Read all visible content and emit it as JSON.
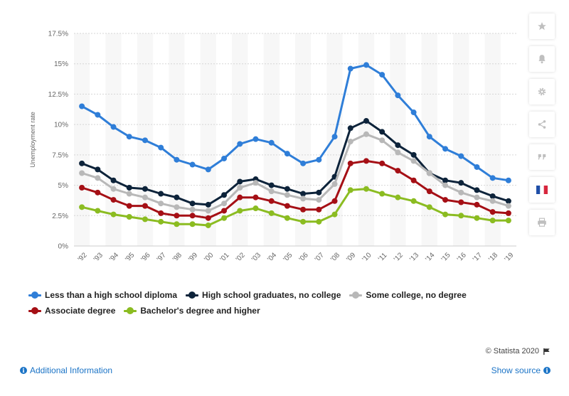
{
  "chart_data": {
    "type": "line",
    "title": "",
    "xlabel": "",
    "ylabel": "Unemployment rate",
    "ylim": [
      0,
      17.5
    ],
    "yticks": [
      0,
      2.5,
      5,
      7.5,
      10,
      12.5,
      15,
      17.5
    ],
    "ytick_labels": [
      "0%",
      "2.5%",
      "5%",
      "7.5%",
      "10%",
      "12.5%",
      "15%",
      "17.5%"
    ],
    "categories": [
      "'92",
      "'93",
      "'94",
      "'95",
      "'96",
      "'97",
      "'98",
      "'99",
      "'00",
      "'01",
      "'02",
      "'03",
      "'04",
      "'05",
      "'06",
      "'07",
      "'08",
      "'09",
      "'10",
      "'11",
      "'12",
      "'13",
      "'14",
      "'15",
      "'16",
      "'17",
      "'18",
      "'19"
    ],
    "grid": true,
    "legend_position": "bottom",
    "series": [
      {
        "name": "Less than a high school diploma",
        "color": "#2f7ed8",
        "values": [
          11.5,
          10.8,
          9.8,
          9.0,
          8.7,
          8.1,
          7.1,
          6.7,
          6.3,
          7.2,
          8.4,
          8.8,
          8.5,
          7.6,
          6.8,
          7.1,
          9.0,
          14.6,
          14.9,
          14.1,
          12.4,
          11.0,
          9.0,
          8.0,
          7.4,
          6.5,
          5.6,
          5.4
        ]
      },
      {
        "name": "High school graduates, no college",
        "color": "#0d233a",
        "values": [
          6.8,
          6.3,
          5.4,
          4.8,
          4.7,
          4.3,
          4.0,
          3.5,
          3.4,
          4.2,
          5.3,
          5.5,
          5.0,
          4.7,
          4.3,
          4.4,
          5.7,
          9.7,
          10.3,
          9.4,
          8.3,
          7.5,
          6.0,
          5.4,
          5.2,
          4.6,
          4.1,
          3.7
        ]
      },
      {
        "name": "Some college, no degree",
        "color": "#b8b8b8",
        "values": [
          6.0,
          5.6,
          4.7,
          4.3,
          4.0,
          3.5,
          3.2,
          3.0,
          2.9,
          3.5,
          4.8,
          5.2,
          4.5,
          4.2,
          3.9,
          3.8,
          5.1,
          8.6,
          9.2,
          8.7,
          7.7,
          7.0,
          6.0,
          5.0,
          4.4,
          4.0,
          3.7,
          3.3
        ]
      },
      {
        "name": "Associate degree",
        "color": "#a50f15",
        "values": [
          4.8,
          4.4,
          3.8,
          3.3,
          3.3,
          2.7,
          2.5,
          2.5,
          2.3,
          2.9,
          4.0,
          4.0,
          3.7,
          3.3,
          3.0,
          3.0,
          3.7,
          6.8,
          7.0,
          6.8,
          6.2,
          5.4,
          4.5,
          3.8,
          3.6,
          3.4,
          2.8,
          2.7
        ]
      },
      {
        "name": "Bachelor's degree and higher",
        "color": "#8bbc21",
        "values": [
          3.2,
          2.9,
          2.6,
          2.4,
          2.2,
          2.0,
          1.8,
          1.8,
          1.7,
          2.3,
          2.9,
          3.1,
          2.7,
          2.3,
          2.0,
          2.0,
          2.6,
          4.6,
          4.7,
          4.3,
          4.0,
          3.7,
          3.2,
          2.6,
          2.5,
          2.3,
          2.1,
          2.1
        ]
      }
    ]
  },
  "footer": {
    "credit": "© Statista 2020",
    "additional_info": "Additional Information",
    "show_source": "Show source"
  },
  "sidebar": {
    "icons": [
      "star-icon",
      "bell-icon",
      "gear-icon",
      "share-icon",
      "quote-icon",
      "french-flag-icon",
      "print-icon"
    ]
  }
}
